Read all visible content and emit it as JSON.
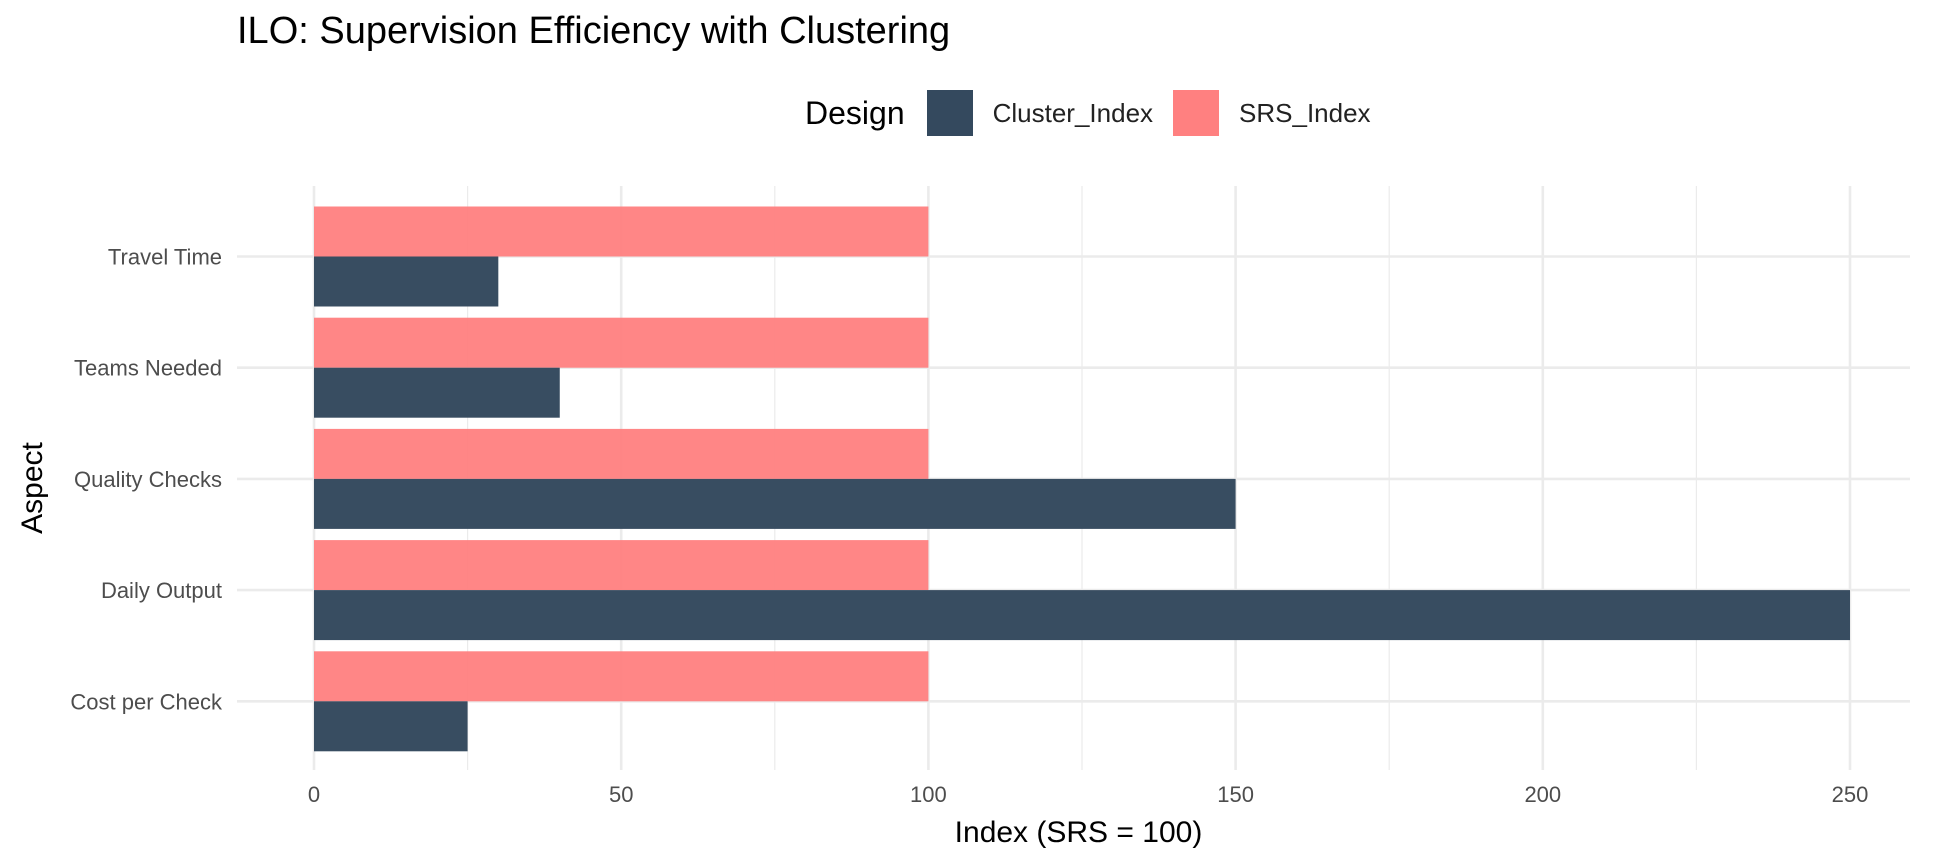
{
  "chart_data": {
    "type": "bar",
    "orientation": "horizontal",
    "title": "ILO: Supervision Efficiency with Clustering",
    "xlabel": "Index (SRS = 100)",
    "ylabel": "Aspect",
    "xlim": [
      0,
      250
    ],
    "xticks": [
      0,
      50,
      100,
      150,
      200,
      250
    ],
    "grid": true,
    "legend_title": "Design",
    "legend_position": "top",
    "categories": [
      "Travel Time",
      "Teams Needed",
      "Quality Checks",
      "Daily Output",
      "Cost per Check"
    ],
    "series": [
      {
        "name": "Cluster_Index",
        "color": "#34495e",
        "values": [
          30,
          40,
          150,
          250,
          25
        ]
      },
      {
        "name": "SRS_Index",
        "color": "#ff8080",
        "values": [
          100,
          100,
          100,
          100,
          100
        ]
      }
    ]
  }
}
